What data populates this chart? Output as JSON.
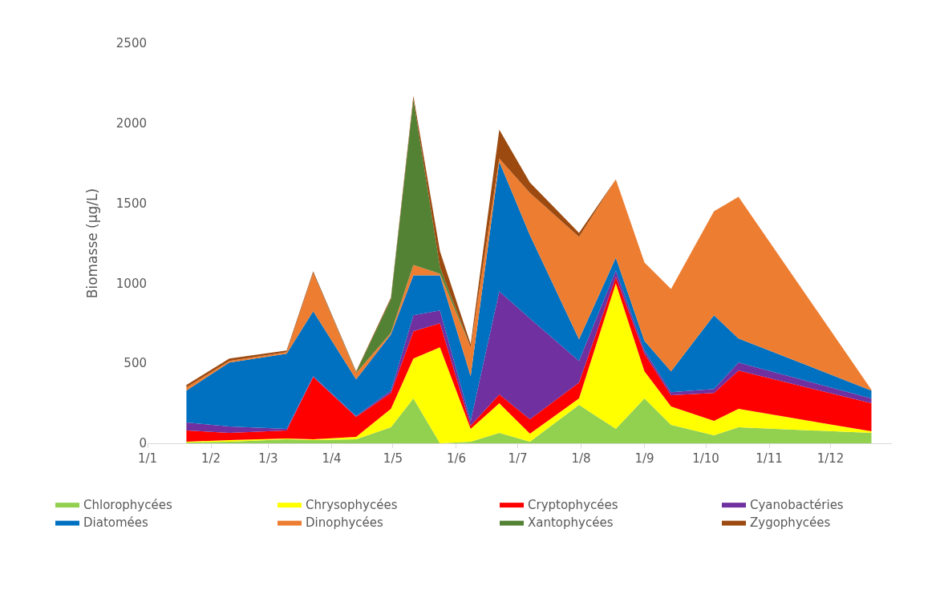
{
  "chart_data": {
    "type": "area",
    "stacked": true,
    "ylabel": "Biomasse (µg/L)",
    "x": [
      "--01-20",
      "--02-10",
      "--03-10",
      "--03-23",
      "--04-13",
      "--04-30",
      "--05-11",
      "--05-24",
      "--06-08",
      "--06-22",
      "--07-07",
      "--07-31",
      "--08-18",
      "--09-01",
      "--09-14",
      "--10-05",
      "--10-17",
      "--12-21"
    ],
    "series": [
      {
        "name": "Chlorophycées",
        "color": "#92d050",
        "values": [
          5,
          10,
          25,
          20,
          25,
          100,
          280,
          0,
          10,
          65,
          10,
          240,
          90,
          280,
          115,
          50,
          100,
          65
        ]
      },
      {
        "name": "Chrysophycées",
        "color": "#ffff00",
        "values": [
          5,
          10,
          5,
          5,
          15,
          115,
          250,
          600,
          80,
          185,
          50,
          40,
          910,
          170,
          115,
          90,
          115,
          10
        ]
      },
      {
        "name": "Cryptophycées",
        "color": "#ff0000",
        "values": [
          70,
          45,
          50,
          390,
          125,
          100,
          170,
          150,
          20,
          55,
          90,
          100,
          40,
          110,
          70,
          175,
          240,
          175
        ]
      },
      {
        "name": "Cyanobactéries",
        "color": "#7030a0",
        "values": [
          50,
          40,
          10,
          5,
          5,
          15,
          100,
          80,
          30,
          645,
          630,
          135,
          40,
          20,
          20,
          25,
          50,
          30
        ]
      },
      {
        "name": "Diatomées",
        "color": "#0070c0",
        "values": [
          200,
          400,
          470,
          405,
          230,
          350,
          250,
          220,
          280,
          810,
          520,
          135,
          80,
          60,
          130,
          460,
          150,
          50
        ]
      },
      {
        "name": "Dinophycées",
        "color": "#ed7d31",
        "values": [
          20,
          10,
          10,
          240,
          40,
          10,
          65,
          10,
          180,
          20,
          265,
          640,
          490,
          490,
          515,
          650,
          885,
          5
        ]
      },
      {
        "name": "Xantophycées",
        "color": "#548235",
        "values": [
          0,
          0,
          0,
          0,
          5,
          210,
          1035,
          40,
          0,
          0,
          0,
          0,
          0,
          0,
          0,
          0,
          0,
          0
        ]
      },
      {
        "name": "Zygophycées",
        "color": "#9c4a10",
        "values": [
          15,
          15,
          10,
          10,
          5,
          10,
          20,
          100,
          20,
          180,
          65,
          25,
          0,
          0,
          0,
          0,
          0,
          0
        ]
      }
    ],
    "xlim": [
      "--01-01",
      "--12-31"
    ],
    "xticks": [
      {
        "value": "--01-01",
        "label": "1/1"
      },
      {
        "value": "--02-01",
        "label": "1/2"
      },
      {
        "value": "--03-01",
        "label": "1/3"
      },
      {
        "value": "--04-01",
        "label": "1/4"
      },
      {
        "value": "--05-01",
        "label": "1/5"
      },
      {
        "value": "--06-01",
        "label": "1/6"
      },
      {
        "value": "--07-01",
        "label": "1/7"
      },
      {
        "value": "--08-01",
        "label": "1/8"
      },
      {
        "value": "--09-01",
        "label": "1/9"
      },
      {
        "value": "--10-01",
        "label": "1/10"
      },
      {
        "value": "--11-01",
        "label": "1/11"
      },
      {
        "value": "--12-01",
        "label": "1/12"
      }
    ],
    "ylim": [
      0,
      2500
    ],
    "yticks": [
      0,
      500,
      1000,
      1500,
      2000,
      2500
    ],
    "grid": false,
    "legend": "bottom"
  }
}
